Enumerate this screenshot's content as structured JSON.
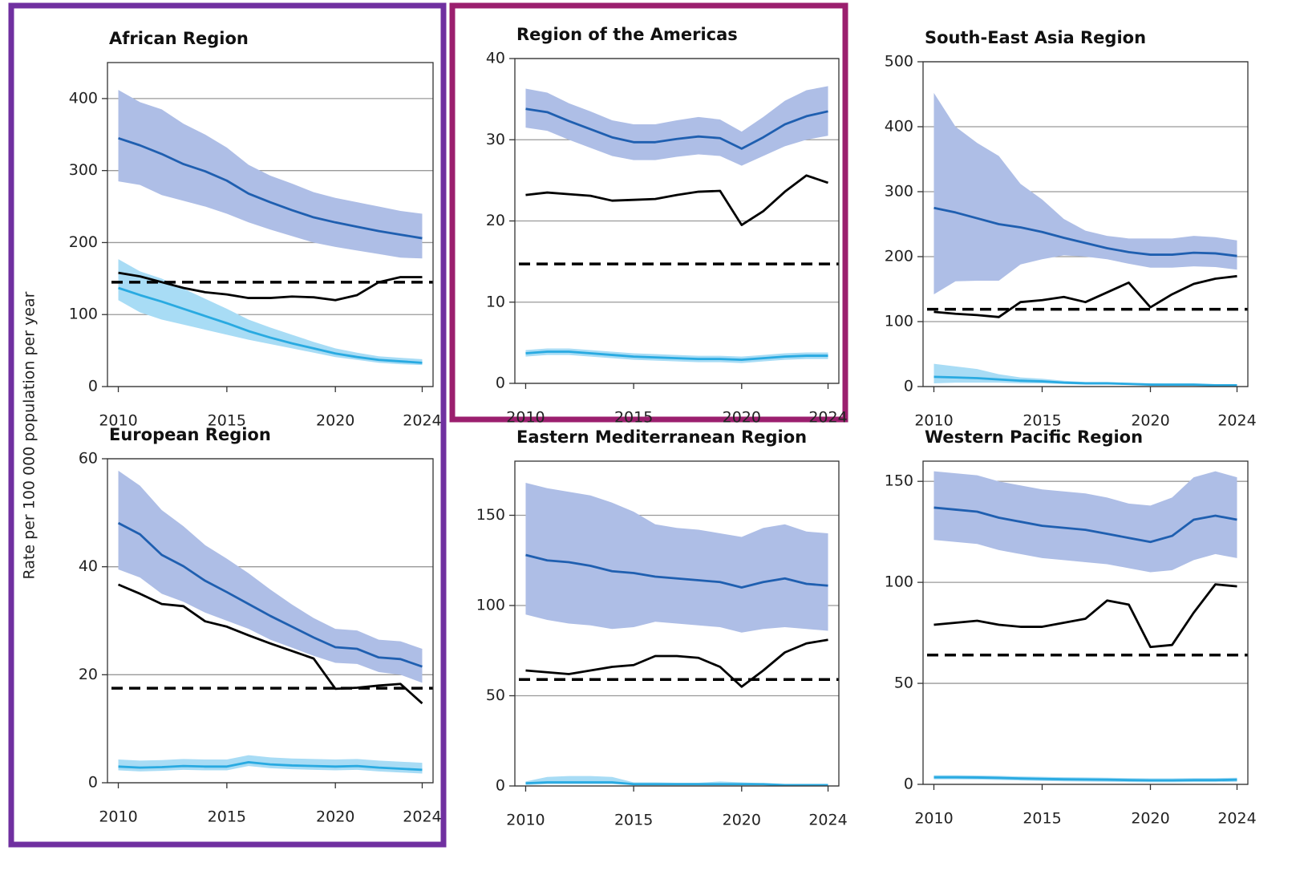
{
  "chart_data": [
    {
      "type": "line",
      "title": "African Region",
      "ylabel": "Rate per 100 000 population per year",
      "x": [
        2010,
        2011,
        2012,
        2013,
        2014,
        2015,
        2016,
        2017,
        2018,
        2019,
        2020,
        2021,
        2022,
        2023,
        2024
      ],
      "xlim": [
        2009.5,
        2024.5
      ],
      "xticks": [
        2010,
        2015,
        2020,
        2024
      ],
      "ylim": [
        0,
        450
      ],
      "yticks": [
        0,
        100,
        200,
        300,
        400
      ],
      "grid": true,
      "series": [
        {
          "color": "#1f5fb0",
          "band_color": "#aebee6",
          "values": [
            345,
            335,
            323,
            309,
            299,
            286,
            268,
            256,
            245,
            235,
            228,
            222,
            216,
            211,
            206
          ],
          "lower": [
            285,
            280,
            266,
            258,
            250,
            240,
            228,
            218,
            209,
            200,
            194,
            189,
            184,
            179,
            178
          ],
          "upper": [
            412,
            395,
            385,
            365,
            350,
            332,
            308,
            293,
            282,
            270,
            262,
            256,
            250,
            244,
            240
          ]
        },
        {
          "color": "#29aae1",
          "band_color": "#a8dcf5",
          "values": [
            137,
            127,
            118,
            108,
            98,
            88,
            77,
            68,
            60,
            53,
            46,
            41,
            37,
            35,
            33
          ],
          "lower": [
            120,
            103,
            93,
            86,
            79,
            72,
            65,
            59,
            53,
            47,
            41,
            37,
            33,
            31,
            30
          ],
          "upper": [
            177,
            160,
            150,
            136,
            122,
            108,
            93,
            82,
            72,
            62,
            53,
            47,
            42,
            40,
            38
          ]
        },
        {
          "color": "#000000",
          "values": [
            158,
            153,
            145,
            137,
            131,
            128,
            123,
            123,
            125,
            124,
            120,
            127,
            145,
            152,
            152
          ]
        }
      ],
      "reference_line": {
        "value": 145,
        "color": "#000000",
        "dash": true
      }
    },
    {
      "type": "line",
      "title": "Region of the Americas",
      "x": [
        2010,
        2011,
        2012,
        2013,
        2014,
        2015,
        2016,
        2017,
        2018,
        2019,
        2020,
        2021,
        2022,
        2023,
        2024
      ],
      "xlim": [
        2009.5,
        2024.5
      ],
      "xticks": [
        2010,
        2015,
        2020,
        2024
      ],
      "ylim": [
        0,
        40
      ],
      "yticks": [
        0,
        10,
        20,
        30,
        40
      ],
      "grid": true,
      "series": [
        {
          "color": "#1f5fb0",
          "band_color": "#aebee6",
          "values": [
            33.8,
            33.4,
            32.3,
            31.3,
            30.3,
            29.7,
            29.7,
            30.1,
            30.4,
            30.2,
            28.9,
            30.3,
            31.9,
            32.9,
            33.5
          ],
          "lower": [
            31.5,
            31.1,
            30.0,
            29.0,
            28.0,
            27.5,
            27.5,
            27.9,
            28.2,
            28.0,
            26.8,
            28.0,
            29.2,
            30.0,
            30.5
          ],
          "upper": [
            36.3,
            35.8,
            34.5,
            33.5,
            32.4,
            31.9,
            31.9,
            32.4,
            32.8,
            32.5,
            31.0,
            32.8,
            34.8,
            36.1,
            36.6
          ]
        },
        {
          "color": "#29aae1",
          "band_color": "#a8dcf5",
          "values": [
            3.7,
            3.9,
            3.9,
            3.7,
            3.5,
            3.3,
            3.2,
            3.1,
            3.0,
            3.0,
            2.9,
            3.1,
            3.3,
            3.4,
            3.4
          ],
          "lower": [
            3.3,
            3.5,
            3.5,
            3.3,
            3.1,
            2.9,
            2.8,
            2.7,
            2.6,
            2.6,
            2.5,
            2.7,
            2.9,
            3.0,
            3.0
          ],
          "upper": [
            4.1,
            4.3,
            4.3,
            4.1,
            3.9,
            3.7,
            3.6,
            3.5,
            3.4,
            3.4,
            3.3,
            3.5,
            3.7,
            3.8,
            3.8
          ]
        },
        {
          "color": "#000000",
          "values": [
            23.2,
            23.5,
            23.3,
            23.1,
            22.5,
            22.6,
            22.7,
            23.2,
            23.6,
            23.7,
            19.5,
            21.2,
            23.6,
            25.6,
            24.7
          ]
        }
      ],
      "reference_line": {
        "value": 14.7,
        "color": "#000000",
        "dash": true
      }
    },
    {
      "type": "line",
      "title": "South-East Asia Region",
      "x": [
        2010,
        2011,
        2012,
        2013,
        2014,
        2015,
        2016,
        2017,
        2018,
        2019,
        2020,
        2021,
        2022,
        2023,
        2024
      ],
      "xlim": [
        2009.5,
        2024.5
      ],
      "xticks": [
        2010,
        2015,
        2020,
        2024
      ],
      "ylim": [
        0,
        500
      ],
      "yticks": [
        0,
        100,
        200,
        300,
        400,
        500
      ],
      "grid": true,
      "series": [
        {
          "color": "#1f5fb0",
          "band_color": "#aebee6",
          "values": [
            275,
            268,
            259,
            250,
            245,
            238,
            229,
            221,
            213,
            207,
            203,
            203,
            206,
            205,
            201
          ],
          "lower": [
            142,
            162,
            163,
            163,
            188,
            196,
            202,
            200,
            196,
            189,
            183,
            183,
            185,
            184,
            180
          ],
          "upper": [
            452,
            400,
            375,
            355,
            312,
            288,
            258,
            240,
            232,
            228,
            228,
            228,
            232,
            230,
            225
          ]
        },
        {
          "color": "#29aae1",
          "band_color": "#a8dcf5",
          "values": [
            15,
            14,
            13,
            11,
            9,
            8,
            6,
            5,
            5,
            4,
            3,
            3,
            3,
            2,
            2
          ],
          "lower": [
            5,
            6,
            6,
            6,
            5,
            5,
            4,
            3,
            3,
            3,
            2,
            2,
            2,
            1,
            1
          ],
          "upper": [
            35,
            31,
            27,
            19,
            14,
            12,
            9,
            7,
            7,
            6,
            5,
            4,
            4,
            3,
            3
          ]
        },
        {
          "color": "#000000",
          "values": [
            115,
            112,
            110,
            107,
            130,
            133,
            138,
            130,
            145,
            160,
            122,
            142,
            158,
            166,
            170
          ]
        }
      ],
      "reference_line": {
        "value": 119,
        "color": "#000000",
        "dash": true
      }
    },
    {
      "type": "line",
      "title": "European Region",
      "x": [
        2010,
        2011,
        2012,
        2013,
        2014,
        2015,
        2016,
        2017,
        2018,
        2019,
        2020,
        2021,
        2022,
        2023,
        2024
      ],
      "xlim": [
        2009.5,
        2024.5
      ],
      "xticks": [
        2010,
        2015,
        2020,
        2024
      ],
      "ylim": [
        0,
        60
      ],
      "yticks": [
        0,
        20,
        40,
        60
      ],
      "grid": true,
      "series": [
        {
          "color": "#1f5fb0",
          "band_color": "#aebee6",
          "values": [
            48.1,
            46.0,
            42.2,
            40.1,
            37.4,
            35.3,
            33.1,
            30.9,
            28.9,
            26.9,
            25.1,
            24.8,
            23.2,
            22.9,
            21.5
          ],
          "lower": [
            39.5,
            38.0,
            35.0,
            33.5,
            31.5,
            30.0,
            28.5,
            26.5,
            25.0,
            23.5,
            22.2,
            22.0,
            20.5,
            20.0,
            18.5
          ],
          "upper": [
            57.8,
            55.0,
            50.5,
            47.5,
            44.0,
            41.5,
            38.8,
            35.8,
            33.0,
            30.5,
            28.5,
            28.2,
            26.5,
            26.2,
            24.8
          ]
        },
        {
          "color": "#29aae1",
          "band_color": "#a8dcf5",
          "values": [
            3.0,
            2.8,
            2.9,
            3.1,
            3.0,
            3.0,
            3.8,
            3.4,
            3.2,
            3.1,
            3.0,
            3.1,
            2.8,
            2.6,
            2.4
          ],
          "lower": [
            2.3,
            2.1,
            2.2,
            2.4,
            2.3,
            2.3,
            3.1,
            2.7,
            2.5,
            2.4,
            2.3,
            2.4,
            2.1,
            1.9,
            1.7
          ],
          "upper": [
            4.3,
            4.1,
            4.2,
            4.4,
            4.3,
            4.3,
            5.1,
            4.7,
            4.5,
            4.4,
            4.3,
            4.4,
            4.1,
            3.9,
            3.7
          ]
        },
        {
          "color": "#000000",
          "values": [
            36.7,
            35.0,
            33.1,
            32.7,
            29.9,
            28.9,
            27.3,
            25.8,
            24.4,
            23.0,
            17.4,
            17.6,
            18.0,
            18.3,
            14.7
          ]
        }
      ],
      "reference_line": {
        "value": 17.5,
        "color": "#000000",
        "dash": true
      }
    },
    {
      "type": "line",
      "title": "Eastern Mediterranean Region",
      "x": [
        2010,
        2011,
        2012,
        2013,
        2014,
        2015,
        2016,
        2017,
        2018,
        2019,
        2020,
        2021,
        2022,
        2023,
        2024
      ],
      "xlim": [
        2009.5,
        2024.5
      ],
      "xticks": [
        2010,
        2015,
        2020,
        2024
      ],
      "ylim": [
        0,
        180
      ],
      "yticks": [
        0,
        50,
        100,
        150
      ],
      "grid": true,
      "series": [
        {
          "color": "#1f5fb0",
          "band_color": "#aebee6",
          "values": [
            128,
            125,
            124,
            122,
            119,
            118,
            116,
            115,
            114,
            113,
            110,
            113,
            115,
            112,
            111
          ],
          "lower": [
            95,
            92,
            90,
            89,
            87,
            88,
            91,
            90,
            89,
            88,
            85,
            87,
            88,
            87,
            86
          ],
          "upper": [
            168,
            165,
            163,
            161,
            157,
            152,
            145,
            143,
            142,
            140,
            138,
            143,
            145,
            141,
            140
          ]
        },
        {
          "color": "#29aae1",
          "band_color": "#a8dcf5",
          "values": [
            1.5,
            2,
            2,
            2,
            2,
            1,
            1,
            1,
            1,
            1,
            1,
            1,
            0.5,
            0.5,
            0.5
          ],
          "lower": [
            0.5,
            1,
            1,
            1,
            1,
            0.5,
            0.5,
            0.5,
            0.5,
            0.5,
            0.5,
            0.5,
            0.2,
            0.2,
            0.2
          ],
          "upper": [
            2.5,
            5,
            5.5,
            5.5,
            5,
            2,
            2,
            1.8,
            1.8,
            2.5,
            2,
            1.5,
            1,
            1,
            1
          ]
        },
        {
          "color": "#000000",
          "values": [
            64,
            63,
            62,
            64,
            66,
            67,
            72,
            72,
            71,
            66,
            55,
            64,
            74,
            79,
            81
          ]
        }
      ],
      "reference_line": {
        "value": 59,
        "color": "#000000",
        "dash": true
      }
    },
    {
      "type": "line",
      "title": "Western Pacific Region",
      "x": [
        2010,
        2011,
        2012,
        2013,
        2014,
        2015,
        2016,
        2017,
        2018,
        2019,
        2020,
        2021,
        2022,
        2023,
        2024
      ],
      "xlim": [
        2009.5,
        2024.5
      ],
      "xticks": [
        2010,
        2015,
        2020,
        2024
      ],
      "ylim": [
        0,
        160
      ],
      "yticks": [
        0,
        50,
        100,
        150
      ],
      "grid": true,
      "series": [
        {
          "color": "#1f5fb0",
          "band_color": "#aebee6",
          "values": [
            137,
            136,
            135,
            132,
            130,
            128,
            127,
            126,
            124,
            122,
            120,
            123,
            131,
            133,
            131
          ],
          "lower": [
            121,
            120,
            119,
            116,
            114,
            112,
            111,
            110,
            109,
            107,
            105,
            106,
            111,
            114,
            112
          ],
          "upper": [
            155,
            154,
            153,
            150,
            148,
            146,
            145,
            144,
            142,
            139,
            138,
            142,
            152,
            155,
            152
          ]
        },
        {
          "color": "#29aae1",
          "band_color": "#a8dcf5",
          "values": [
            3.5,
            3.5,
            3.4,
            3.2,
            2.9,
            2.7,
            2.5,
            2.4,
            2.3,
            2.1,
            2.0,
            2.0,
            2.1,
            2.1,
            2.3
          ],
          "lower": [
            2.5,
            2.5,
            2.4,
            2.2,
            1.9,
            1.7,
            1.5,
            1.4,
            1.3,
            1.1,
            1.0,
            1.0,
            1.1,
            1.1,
            1.3
          ],
          "upper": [
            4.5,
            4.5,
            4.4,
            4.2,
            3.9,
            3.7,
            3.5,
            3.4,
            3.3,
            3.1,
            3.0,
            3.0,
            3.1,
            3.1,
            3.3
          ]
        },
        {
          "color": "#000000",
          "values": [
            79,
            80,
            81,
            79,
            78,
            78,
            80,
            82,
            91,
            89,
            68,
            69,
            85,
            99,
            98
          ]
        }
      ],
      "reference_line": {
        "value": 64,
        "color": "#000000",
        "dash": true
      }
    }
  ]
}
